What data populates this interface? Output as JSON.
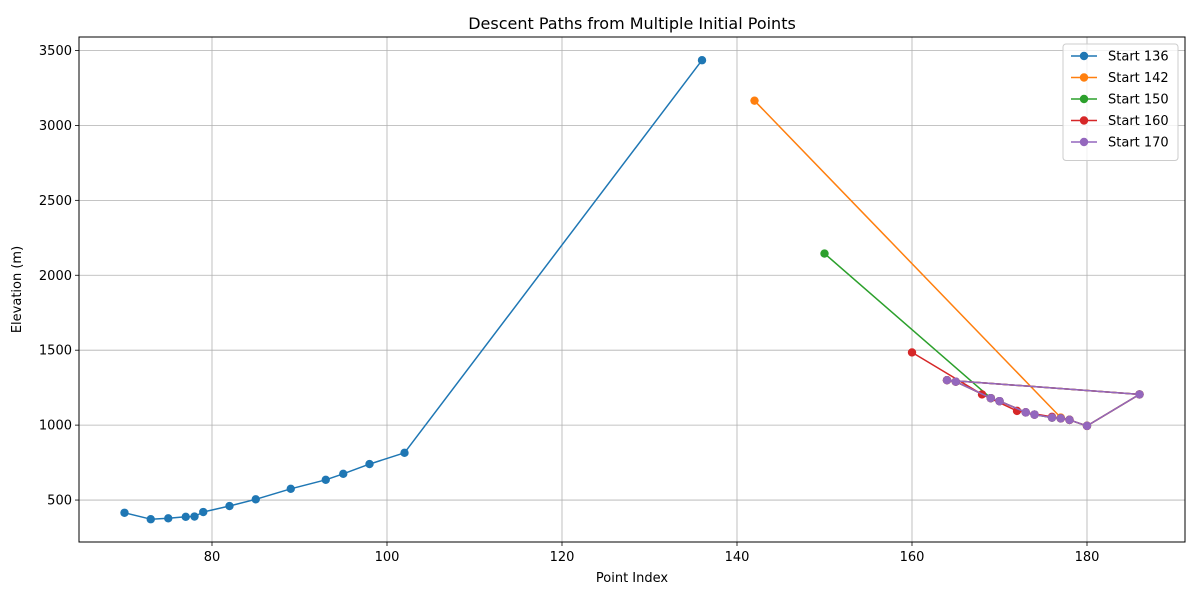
{
  "chart_data": {
    "type": "line",
    "title": "Descent Paths from Multiple Initial Points",
    "xlabel": "Point Index",
    "ylabel": "Elevation (m)",
    "xlim": [
      64.8,
      191.2
    ],
    "ylim": [
      220,
      3590
    ],
    "xticks": [
      80,
      100,
      120,
      140,
      160,
      180
    ],
    "yticks": [
      500,
      1000,
      1500,
      2000,
      2500,
      3000,
      3500
    ],
    "grid": true,
    "legend_position": "top-right",
    "series": [
      {
        "name": "Start 136",
        "color": "#1f77b4",
        "x": [
          136,
          102,
          98,
          95,
          93,
          89,
          85,
          82,
          79,
          78,
          77,
          75,
          73,
          70
        ],
        "y": [
          3435,
          815,
          740,
          675,
          635,
          575,
          505,
          460,
          420,
          390,
          388,
          378,
          372,
          415
        ]
      },
      {
        "name": "Start 142",
        "color": "#ff7f0e",
        "x": [
          142,
          177,
          178,
          180,
          186,
          164,
          165,
          169,
          170,
          173,
          174,
          176,
          177,
          178
        ],
        "y": [
          3165,
          1050,
          1035,
          995,
          1205,
          1300,
          1290,
          1180,
          1160,
          1085,
          1070,
          1050,
          1045,
          1035
        ]
      },
      {
        "name": "Start 150",
        "color": "#2ca02c",
        "x": [
          150,
          169,
          170,
          173,
          174,
          176,
          177,
          178,
          180,
          186,
          164,
          165,
          169,
          170
        ],
        "y": [
          2145,
          1180,
          1160,
          1085,
          1070,
          1050,
          1045,
          1035,
          995,
          1205,
          1300,
          1290,
          1180,
          1160
        ]
      },
      {
        "name": "Start 160",
        "color": "#d62728",
        "x": [
          160,
          168,
          172,
          176,
          177,
          178,
          180,
          186,
          164,
          165,
          169,
          170,
          173,
          174
        ],
        "y": [
          1485,
          1205,
          1095,
          1055,
          1045,
          1035,
          995,
          1205,
          1300,
          1290,
          1180,
          1160,
          1085,
          1070
        ]
      },
      {
        "name": "Start 170",
        "color": "#9467bd",
        "x": [
          170,
          173,
          174,
          176,
          177,
          178,
          180,
          186,
          164,
          165,
          169,
          170,
          173,
          174
        ],
        "y": [
          1160,
          1085,
          1070,
          1050,
          1045,
          1035,
          995,
          1205,
          1300,
          1290,
          1180,
          1160,
          1085,
          1070
        ]
      }
    ]
  }
}
